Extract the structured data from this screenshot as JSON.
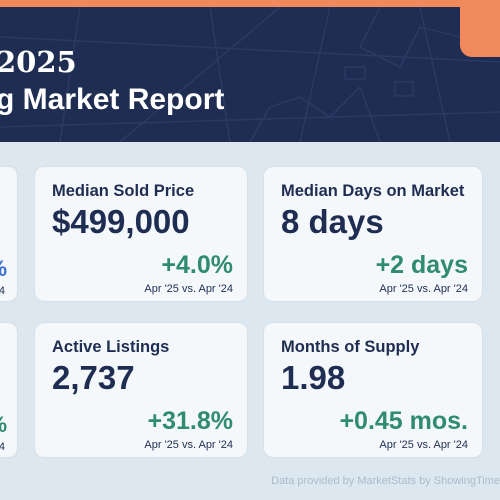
{
  "header": {
    "year": "2025",
    "subtitle": "g Market Report"
  },
  "cards": {
    "median_sold_price": {
      "title": "Median Sold Price",
      "value": "$499,000",
      "change": "+4.0%",
      "compare": "Apr '25 vs. Apr '24"
    },
    "median_days_on_market": {
      "title": "Median Days on Market",
      "value": "8 days",
      "change": "+2 days",
      "compare": "Apr '25 vs. Apr '24"
    },
    "active_listings": {
      "title": "Active Listings",
      "value": "2,737",
      "change": "+31.8%",
      "compare": "Apr '25 vs. Apr '24"
    },
    "months_of_supply": {
      "title": "Months of Supply",
      "value": "1.98",
      "change": "+0.45 mos.",
      "compare": "Apr '25 vs. Apr '24"
    }
  },
  "left_fragments": {
    "top": {
      "percent": "%",
      "compare": "4"
    },
    "bottom": {
      "percent": "%",
      "compare": "4"
    }
  },
  "footer": {
    "text": "Data provided by MarketStats by ShowingTime"
  },
  "colors": {
    "navy": "#1f2d52",
    "accent_orange": "#f0895c",
    "positive_green": "#2f8c6e",
    "blue_fragment": "#3b6fd0",
    "card_background": "#f4f8fb"
  }
}
